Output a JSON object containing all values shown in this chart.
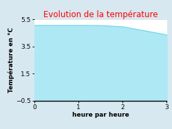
{
  "title": "Evolution de la température",
  "title_color": "#ff0000",
  "xlabel": "heure par heure",
  "ylabel": "Température en °C",
  "x_data": [
    0,
    0.5,
    1.0,
    1.5,
    2.0,
    2.5,
    3.0
  ],
  "y_data": [
    5.05,
    5.05,
    5.05,
    5.04,
    4.95,
    4.65,
    4.35
  ],
  "ylim": [
    -0.5,
    5.5
  ],
  "xlim": [
    0,
    3
  ],
  "yticks": [
    -0.5,
    1.5,
    3.5,
    5.5
  ],
  "xticks": [
    0,
    1,
    2,
    3
  ],
  "line_color": "#7dd8ea",
  "fill_color": "#aee8f5",
  "bg_color": "#d8e8f0",
  "plot_bg_color": "#ffffff",
  "title_fontsize": 8.5,
  "label_fontsize": 6.5,
  "tick_fontsize": 6.5
}
